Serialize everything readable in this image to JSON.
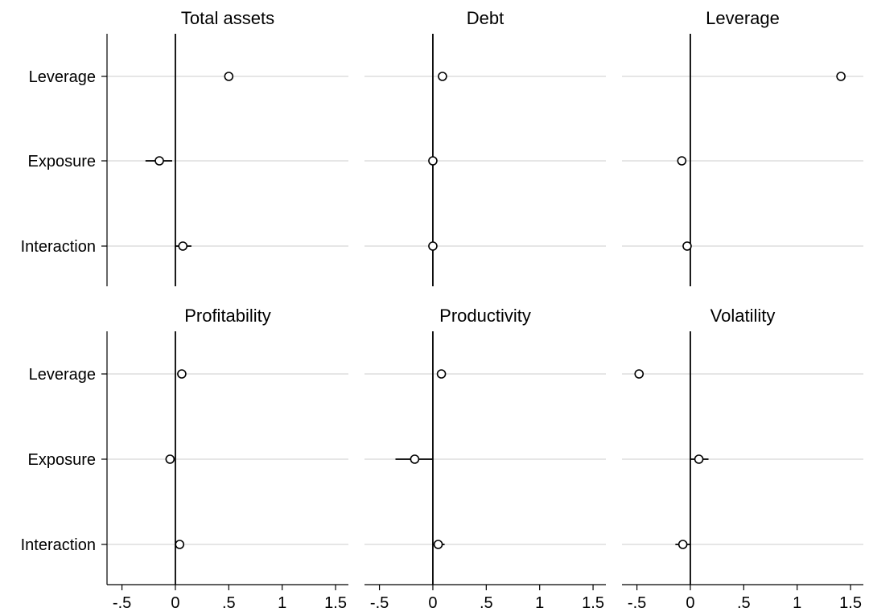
{
  "figure": {
    "background": "#ffffff",
    "gridline_color": "#e6e6e6",
    "axis_color": "#000000",
    "zero_line_color": "#000000"
  },
  "chart_data": [
    {
      "type": "scatter",
      "title": "Total assets",
      "categories": [
        "Leverage",
        "Exposure",
        "Interaction"
      ],
      "xlim": [
        -0.64,
        1.62
      ],
      "xticks": [
        -0.5,
        0,
        0.5,
        1,
        1.5
      ],
      "xtick_labels": [
        "-.5",
        "0",
        ".5",
        "1",
        "1.5"
      ],
      "reference_line": 0,
      "estimates": [
        0.5,
        -0.15,
        0.07
      ],
      "ci": [
        [
          0.47,
          0.53
        ],
        [
          -0.28,
          -0.03
        ],
        [
          0.0,
          0.15
        ]
      ]
    },
    {
      "type": "scatter",
      "title": "Debt",
      "categories": [
        "Leverage",
        "Exposure",
        "Interaction"
      ],
      "xlim": [
        -0.64,
        1.62
      ],
      "xticks": [
        -0.5,
        0,
        0.5,
        1,
        1.5
      ],
      "xtick_labels": [
        "-.5",
        "0",
        ".5",
        "1",
        "1.5"
      ],
      "reference_line": 0,
      "estimates": [
        0.09,
        0.0,
        0.0
      ],
      "ci": [
        [
          0.07,
          0.11
        ],
        [
          -0.02,
          0.02
        ],
        [
          -0.02,
          0.02
        ]
      ]
    },
    {
      "type": "scatter",
      "title": "Leverage",
      "categories": [
        "Leverage",
        "Exposure",
        "Interaction"
      ],
      "xlim": [
        -0.64,
        1.62
      ],
      "xticks": [
        -0.5,
        0,
        0.5,
        1,
        1.5
      ],
      "xtick_labels": [
        "-.5",
        "0",
        ".5",
        "1",
        "1.5"
      ],
      "reference_line": 0,
      "estimates": [
        1.41,
        -0.08,
        -0.03
      ],
      "ci": [
        [
          1.39,
          1.43
        ],
        [
          -0.11,
          -0.05
        ],
        [
          -0.06,
          0.0
        ]
      ]
    },
    {
      "type": "scatter",
      "title": "Profitability",
      "categories": [
        "Leverage",
        "Exposure",
        "Interaction"
      ],
      "xlim": [
        -0.64,
        1.62
      ],
      "xticks": [
        -0.5,
        0,
        0.5,
        1,
        1.5
      ],
      "xtick_labels": [
        "-.5",
        "0",
        ".5",
        "1",
        "1.5"
      ],
      "reference_line": 0,
      "estimates": [
        0.06,
        -0.05,
        0.04
      ],
      "ci": [
        [
          0.04,
          0.08
        ],
        [
          -0.08,
          -0.02
        ],
        [
          0.0,
          0.08
        ]
      ]
    },
    {
      "type": "scatter",
      "title": "Productivity",
      "categories": [
        "Leverage",
        "Exposure",
        "Interaction"
      ],
      "xlim": [
        -0.64,
        1.62
      ],
      "xticks": [
        -0.5,
        0,
        0.5,
        1,
        1.5
      ],
      "xtick_labels": [
        "-.5",
        "0",
        ".5",
        "1",
        "1.5"
      ],
      "reference_line": 0,
      "estimates": [
        0.08,
        -0.17,
        0.05
      ],
      "ci": [
        [
          0.06,
          0.1
        ],
        [
          -0.35,
          0.0
        ],
        [
          0.0,
          0.11
        ]
      ]
    },
    {
      "type": "scatter",
      "title": "Volatility",
      "categories": [
        "Leverage",
        "Exposure",
        "Interaction"
      ],
      "xlim": [
        -0.64,
        1.62
      ],
      "xticks": [
        -0.5,
        0,
        0.5,
        1,
        1.5
      ],
      "xtick_labels": [
        "-.5",
        "0",
        ".5",
        "1",
        "1.5"
      ],
      "reference_line": 0,
      "estimates": [
        -0.48,
        0.08,
        -0.07
      ],
      "ci": [
        [
          -0.5,
          -0.46
        ],
        [
          0.0,
          0.17
        ],
        [
          -0.14,
          0.0
        ]
      ]
    }
  ]
}
